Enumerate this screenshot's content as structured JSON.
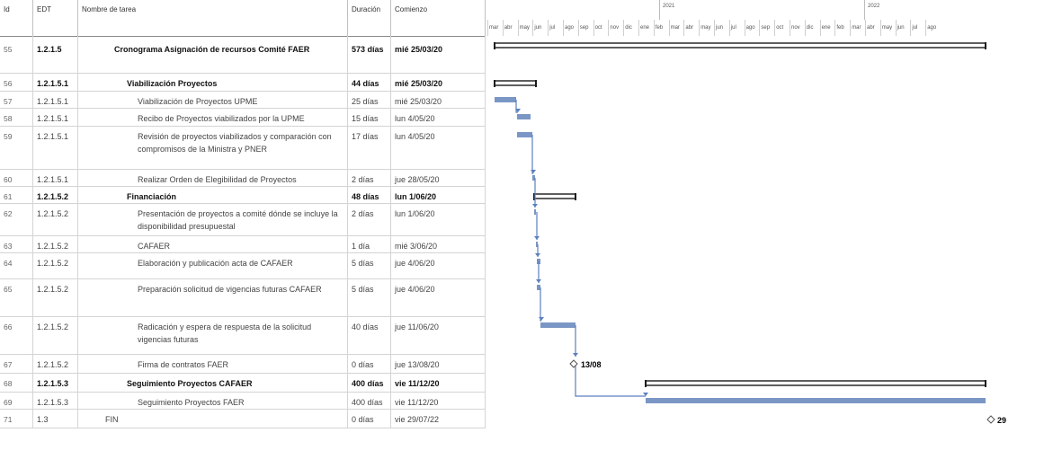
{
  "columns": {
    "id": "Id",
    "wbs": "EDT",
    "name": "Nombre de tarea",
    "duration": "Duración",
    "start": "Comienzo"
  },
  "timescale": {
    "years": [
      "2021",
      "2022"
    ],
    "months": [
      "mar",
      "abr",
      "may",
      "jun",
      "jul",
      "ago",
      "sep",
      "oct",
      "nov",
      "dic",
      "ene",
      "feb",
      "mar",
      "abr",
      "may",
      "jun",
      "jul",
      "ago",
      "sep",
      "oct",
      "nov",
      "dic",
      "ene",
      "feb",
      "mar",
      "abr",
      "may",
      "jun",
      "jul",
      "ago"
    ]
  },
  "tasks": [
    {
      "id": "55",
      "wbs": "1.2.1.5",
      "name": "Cronograma Asignación de recursos Comité FAER",
      "duration": "573 días",
      "start": "mié 25/03/20",
      "summary": true,
      "indent": 0
    },
    {
      "id": "56",
      "wbs": "1.2.1.5.1",
      "name": "Viabilización Proyectos",
      "duration": "44 días",
      "start": "mié 25/03/20",
      "summary": true,
      "indent": 1
    },
    {
      "id": "57",
      "wbs": "1.2.1.5.1",
      "name": "Viabilización de Proyectos UPME",
      "duration": "25 días",
      "start": "mié 25/03/20",
      "summary": false,
      "indent": 2
    },
    {
      "id": "58",
      "wbs": "1.2.1.5.1",
      "name": "Recibo de Proyectos viabilizados por la UPME",
      "duration": "15 días",
      "start": "lun 4/05/20",
      "summary": false,
      "indent": 2
    },
    {
      "id": "59",
      "wbs": "1.2.1.5.1",
      "name": "Revisión de proyectos viabilizados y comparación con compromisos de la Ministra y PNER",
      "duration": "17 días",
      "start": "lun 4/05/20",
      "summary": false,
      "indent": 2
    },
    {
      "id": "60",
      "wbs": "1.2.1.5.1",
      "name": "Realizar Orden de Elegibilidad de Proyectos",
      "duration": "2 días",
      "start": "jue 28/05/20",
      "summary": false,
      "indent": 2
    },
    {
      "id": "61",
      "wbs": "1.2.1.5.2",
      "name": "Financiación",
      "duration": "48 días",
      "start": "lun 1/06/20",
      "summary": true,
      "indent": 1
    },
    {
      "id": "62",
      "wbs": "1.2.1.5.2",
      "name": "Presentación de proyectos a comité dónde se incluye la disponibilidad presupuestal",
      "duration": "2 días",
      "start": "lun 1/06/20",
      "summary": false,
      "indent": 2
    },
    {
      "id": "63",
      "wbs": "1.2.1.5.2",
      "name": "CAFAER",
      "duration": "1 día",
      "start": "mié 3/06/20",
      "summary": false,
      "indent": 2
    },
    {
      "id": "64",
      "wbs": "1.2.1.5.2",
      "name": "Elaboración y publicación  acta de CAFAER",
      "duration": "5 días",
      "start": "jue 4/06/20",
      "summary": false,
      "indent": 2
    },
    {
      "id": "65",
      "wbs": "1.2.1.5.2",
      "name": "Preparación solicitud de vigencias futuras CAFAER",
      "duration": "5 días",
      "start": "jue 4/06/20",
      "summary": false,
      "indent": 2
    },
    {
      "id": "66",
      "wbs": "1.2.1.5.2",
      "name": "Radicación y espera de respuesta de la solicitud vigencias futuras",
      "duration": "40 días",
      "start": "jue 11/06/20",
      "summary": false,
      "indent": 2
    },
    {
      "id": "67",
      "wbs": "1.2.1.5.2",
      "name": "Firma de contratos FAER",
      "duration": "0 días",
      "start": "jue 13/08/20",
      "summary": false,
      "indent": 2
    },
    {
      "id": "68",
      "wbs": "1.2.1.5.3",
      "name": "Seguimiento Proyectos CAFAER",
      "duration": "400 días",
      "start": "vie 11/12/20",
      "summary": true,
      "indent": 1
    },
    {
      "id": "69",
      "wbs": "1.2.1.5.3",
      "name": "Seguimiento Proyectos FAER",
      "duration": "400 días",
      "start": "vie 11/12/20",
      "summary": false,
      "indent": 2
    },
    {
      "id": "71",
      "wbs": "1.3",
      "name": "FIN",
      "duration": "0 días",
      "start": "vie 29/07/22",
      "summary": false,
      "indent": 0,
      "plain": true
    }
  ],
  "milestones": {
    "m67": "13/08",
    "m71": "29"
  },
  "colors": {
    "task_bar": "#7a96c4",
    "summary_bar": "#1a1a1a",
    "link": "#5a7fc0"
  }
}
